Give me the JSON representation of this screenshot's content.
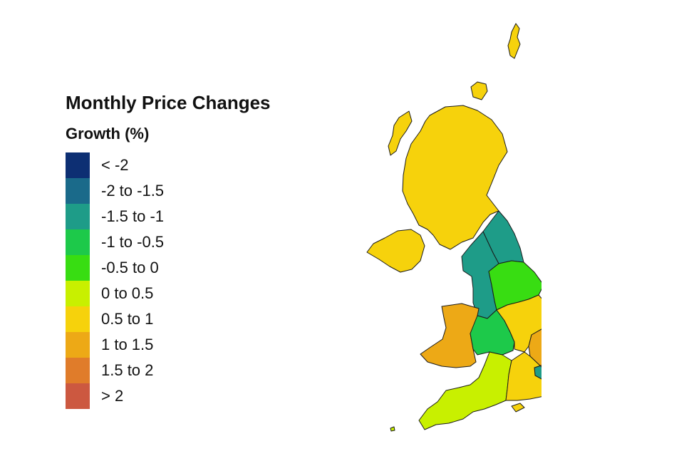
{
  "legend": {
    "title": "Monthly Price Changes",
    "subtitle": "Growth (%)",
    "items": [
      {
        "label": "< -2",
        "color": "#0d2f73"
      },
      {
        "label": "-2 to -1.5",
        "color": "#1a6a8a"
      },
      {
        "label": "-1.5 to -1",
        "color": "#1e9c88"
      },
      {
        "label": "-1 to -0.5",
        "color": "#1dc94a"
      },
      {
        "label": "-0.5 to 0",
        "color": "#38dd12"
      },
      {
        "label": "0 to 0.5",
        "color": "#c8f000"
      },
      {
        "label": "0.5 to 1",
        "color": "#f6d20c"
      },
      {
        "label": "1 to 1.5",
        "color": "#eda916"
      },
      {
        "label": "1.5 to 2",
        "color": "#e07c2a"
      },
      {
        "label": "> 2",
        "color": "#cc5840"
      }
    ]
  },
  "regions": [
    {
      "id": "scotland",
      "category": 6
    },
    {
      "id": "northern-ireland",
      "category": 6
    },
    {
      "id": "north-east",
      "category": 2
    },
    {
      "id": "north-west",
      "category": 2
    },
    {
      "id": "yorkshire-and-the-humber",
      "category": 4
    },
    {
      "id": "wales",
      "category": 7
    },
    {
      "id": "west-midlands",
      "category": 3
    },
    {
      "id": "east-midlands",
      "category": 6
    },
    {
      "id": "east-of-england",
      "category": 7
    },
    {
      "id": "london",
      "category": 2
    },
    {
      "id": "south-west",
      "category": 5
    },
    {
      "id": "south-east",
      "category": 6
    }
  ]
}
